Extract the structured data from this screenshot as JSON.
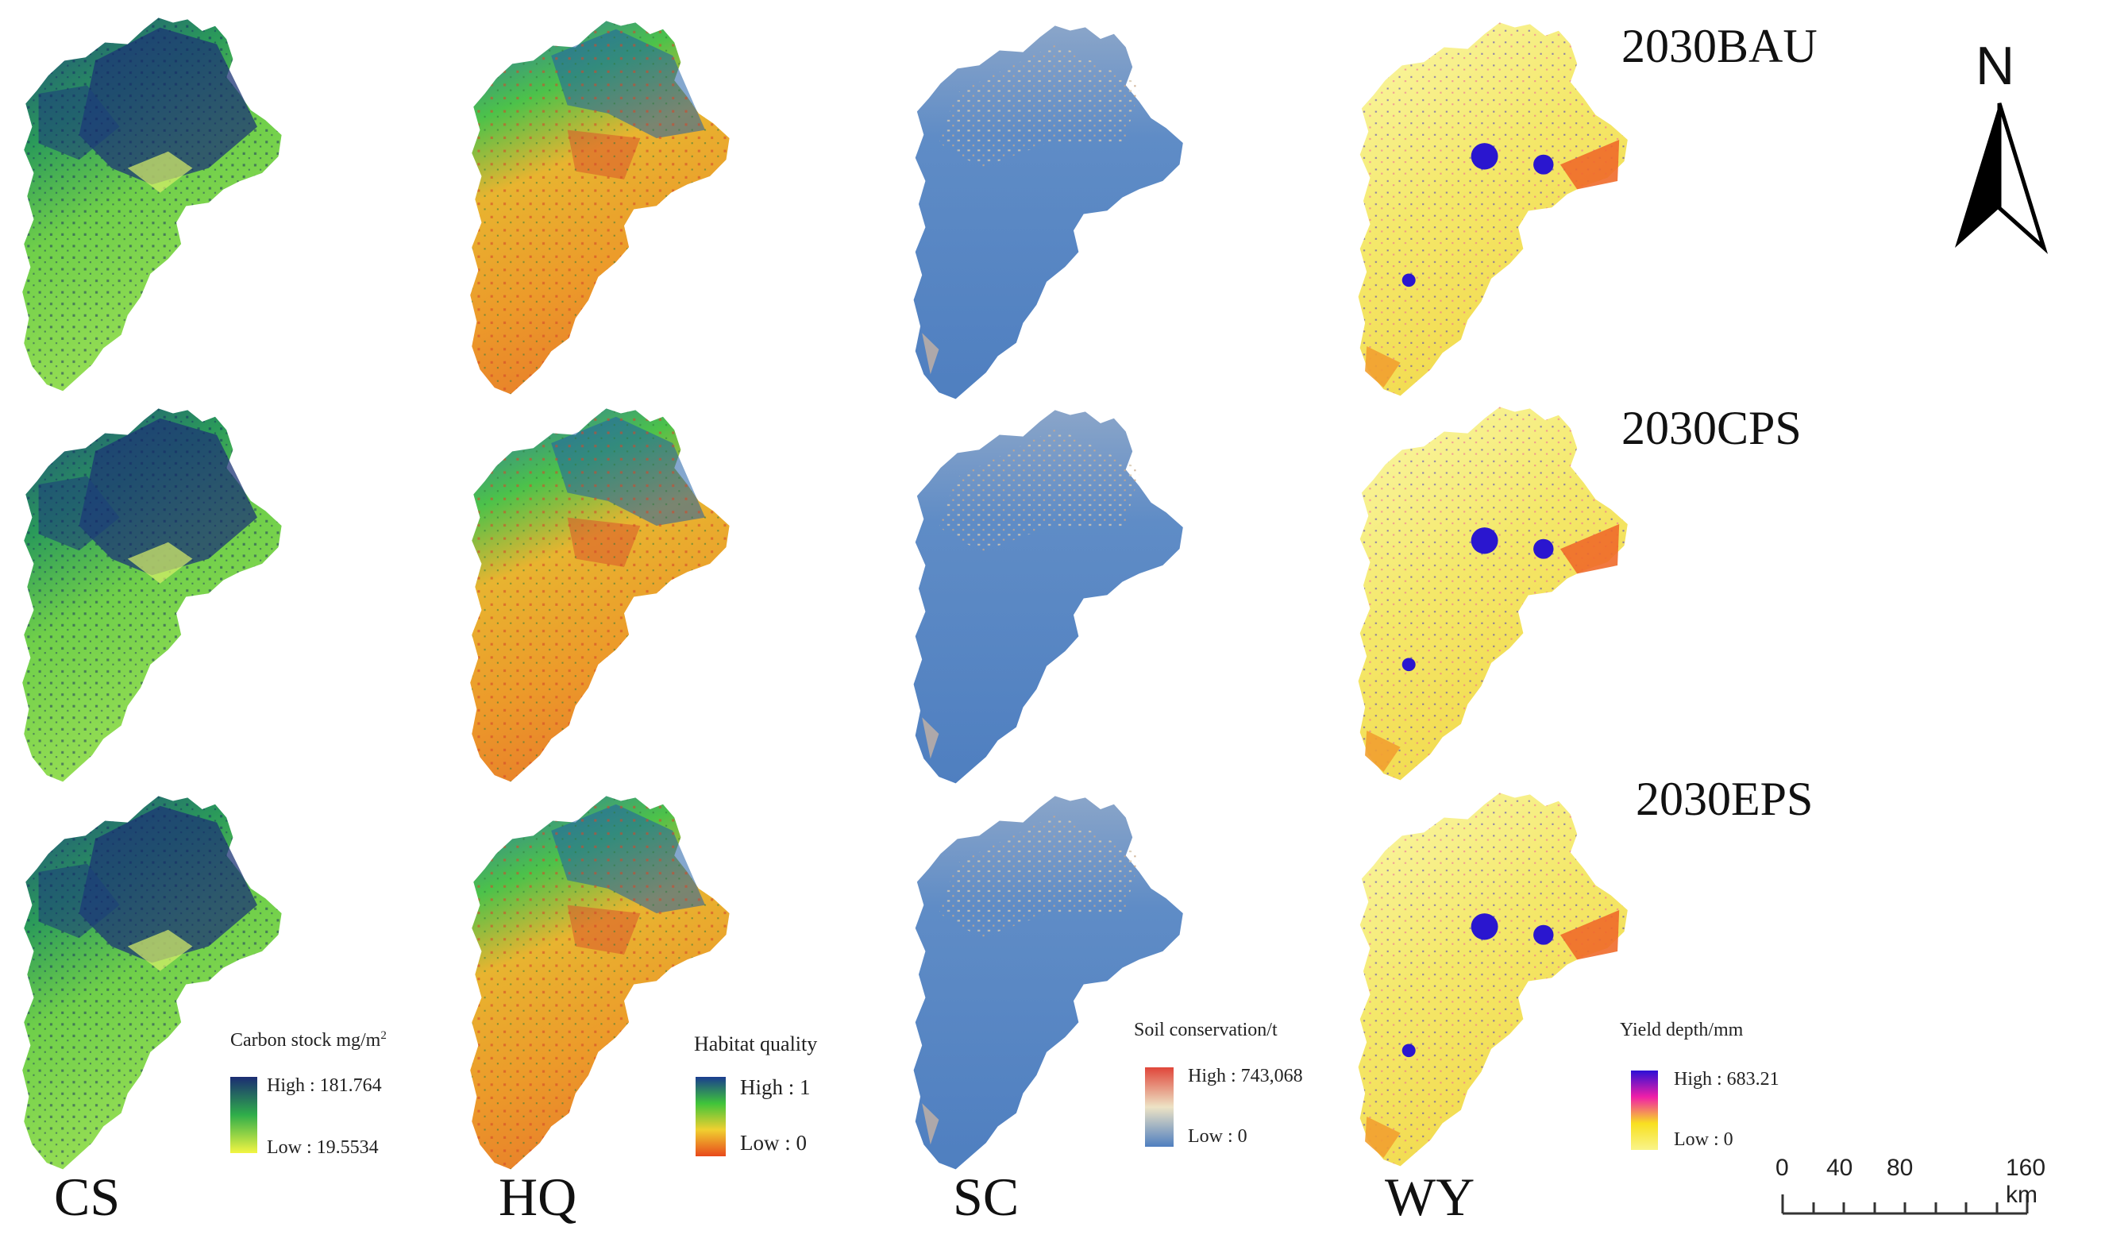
{
  "scenarios": [
    "2030BAU",
    "2030CPS",
    "2030EPS"
  ],
  "columns": [
    "CS",
    "HQ",
    "SC",
    "WY"
  ],
  "north_label": "N",
  "legends": {
    "cs": {
      "title": "Carbon stock mg/m",
      "title_sup": "2",
      "high": "High : 181.764",
      "low": "Low : 19.5534"
    },
    "hq": {
      "title": "Habitat quality",
      "high": "High : 1",
      "low": "Low : 0"
    },
    "sc": {
      "title": "Soil conservation/t",
      "high": "High : 743,068",
      "low": "Low : 0"
    },
    "wy": {
      "title": "Yield depth/mm",
      "high": "High : 683.21",
      "low": "Low : 0"
    }
  },
  "scale_bar": {
    "ticks": [
      "0",
      "40",
      "80",
      "160 km"
    ]
  },
  "colors": {
    "cs_high": "#1b2c73",
    "cs_mid": "#2fae4a",
    "cs_low": "#f2f542",
    "hq_high": "#1a3d8f",
    "hq_mid": "#3fc43a",
    "hq_low": "#e8491c",
    "sc_high": "#e0463a",
    "sc_mid": "#ede3c5",
    "sc_low": "#4f7fc0",
    "wy_high": "#2b0fd6",
    "wy_mid": "#f01fa8",
    "wy_low": "#f9f48a"
  }
}
